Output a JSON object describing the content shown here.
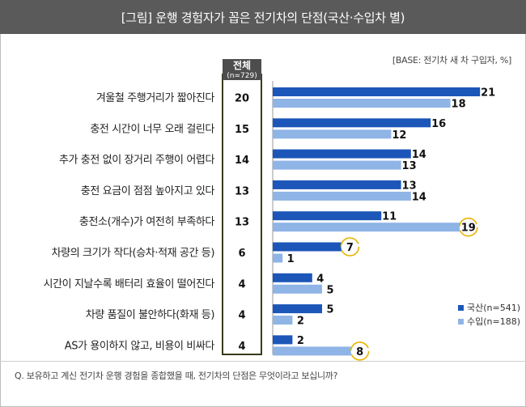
{
  "header": {
    "title": "[그림] 운행 경험자가 꼽은 전기차의 단점(국산·수입차 별)"
  },
  "base_note": "[BASE: 전기차 새 차 구입자, %]",
  "question": "Q. 보유하고 계신 전기차 운행 경험을 종합했을 때, 전기차의 단점은 무엇이라고 보십니까?",
  "chart_data": {
    "type": "bar",
    "orientation": "horizontal",
    "title": "운행 경험자가 꼽은 전기차의 단점(국산·수입차 별)",
    "categories": [
      "겨울철 주행거리가 짧아진다",
      "충전 시간이 너무 오래 걸린다",
      "추가 충전 없이 장거리 주행이 어렵다",
      "충전 요금이 점점 높아지고 있다",
      "충전소(개수)가 여전히 부족하다",
      "차량의 크기가 작다(승차·적재 공간 등)",
      "시간이 지날수록 배터리 효율이 떨어진다",
      "차량 품질이 불안하다(화재 등)",
      "AS가 용이하지 않고, 비용이 비싸다"
    ],
    "total": {
      "label": "전체",
      "sublabel": "(n=729)",
      "values": [
        20,
        15,
        14,
        13,
        13,
        6,
        4,
        4,
        4
      ]
    },
    "series": [
      {
        "name": "국산(n=541)",
        "color": "#1c56b8",
        "values": [
          21,
          16,
          14,
          13,
          11,
          7,
          4,
          5,
          2
        ]
      },
      {
        "name": "수입(n=188)",
        "color": "#8fb4e6",
        "values": [
          18,
          12,
          13,
          14,
          19,
          1,
          5,
          2,
          8
        ]
      }
    ],
    "highlighted": [
      {
        "category_index": 4,
        "series_index": 1
      },
      {
        "category_index": 5,
        "series_index": 0
      },
      {
        "category_index": 8,
        "series_index": 1
      }
    ],
    "xlim": [
      0,
      25
    ],
    "legend_position": "bottom-right",
    "unit": "%"
  }
}
